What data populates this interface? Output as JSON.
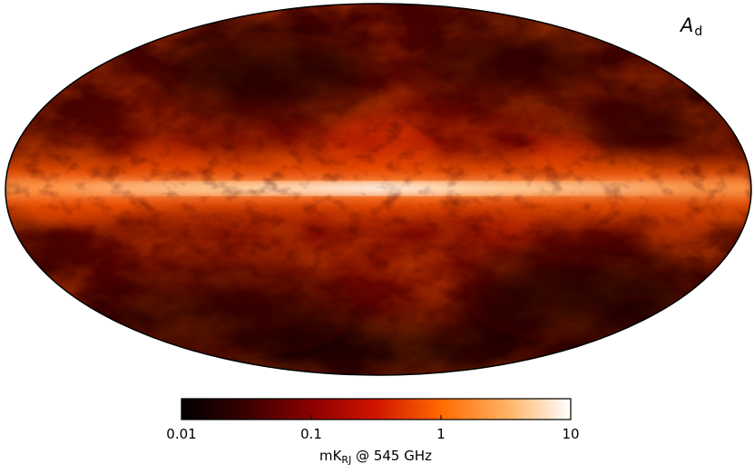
{
  "map": {
    "projection": "mollweide",
    "component_label_main": "A",
    "component_label_sub": "d",
    "colormap": [
      "#000000",
      "#3a0000",
      "#8b0000",
      "#d01500",
      "#ff6a00",
      "#ffb060",
      "#ffffff"
    ],
    "outline_color": "#000000"
  },
  "colorbar": {
    "scale": "log",
    "range": [
      0.01,
      10
    ],
    "ticks": [
      {
        "value": 0.01,
        "label": "0.01"
      },
      {
        "value": 0.1,
        "label": "0.1"
      },
      {
        "value": 1,
        "label": "1"
      },
      {
        "value": 10,
        "label": "10"
      }
    ],
    "unit_prefix": "mK",
    "unit_sub": "RJ",
    "unit_suffix": " @ 545 GHz"
  }
}
